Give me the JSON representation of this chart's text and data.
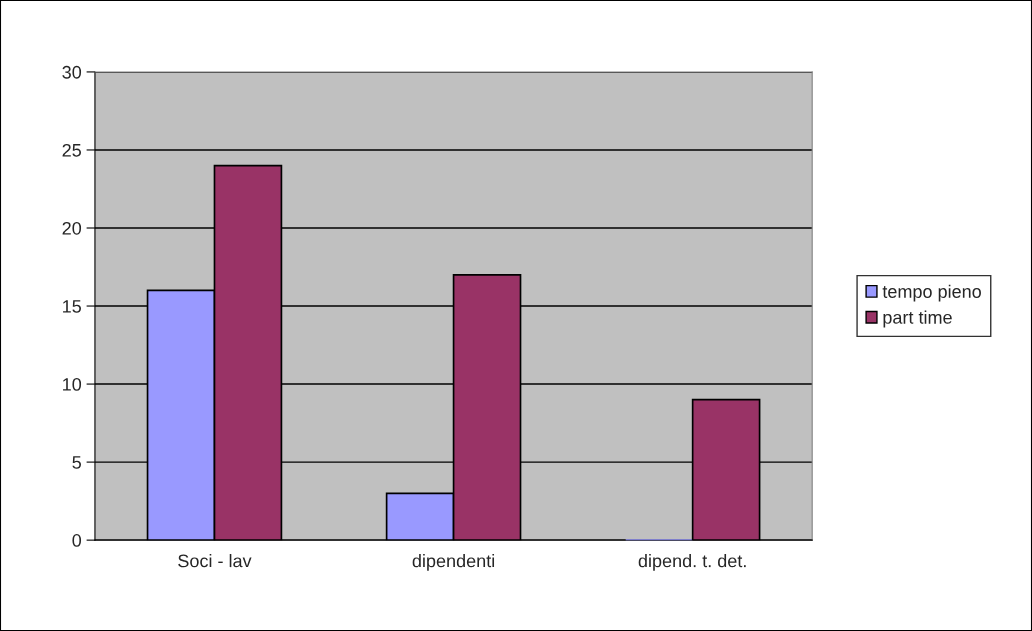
{
  "chart_data": {
    "type": "bar",
    "categories": [
      "Soci - lav",
      "dipendenti",
      "dipend. t. det."
    ],
    "series": [
      {
        "name": "tempo pieno",
        "color": "#9999ff",
        "values": [
          16,
          3,
          0
        ]
      },
      {
        "name": "part time",
        "color": "#993366",
        "values": [
          24,
          17,
          9
        ]
      }
    ],
    "ylim": [
      0,
      30
    ],
    "yticks": [
      0,
      5,
      10,
      15,
      20,
      25,
      30
    ],
    "grid": "y",
    "legend": "right"
  }
}
